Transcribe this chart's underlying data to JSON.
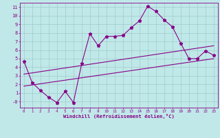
{
  "xlabel": "Windchill (Refroidissement éolien,°C)",
  "bg_color": "#c0e8e8",
  "grid_color": "#a0cccc",
  "line_color": "#880088",
  "spine_color": "#880088",
  "xlim": [
    -0.5,
    23.5
  ],
  "ylim": [
    -0.7,
    11.5
  ],
  "xticks": [
    0,
    1,
    2,
    3,
    4,
    5,
    6,
    7,
    8,
    9,
    10,
    11,
    12,
    13,
    14,
    15,
    16,
    17,
    18,
    19,
    20,
    21,
    22,
    23
  ],
  "yticks": [
    0,
    1,
    2,
    3,
    4,
    5,
    6,
    7,
    8,
    9,
    10,
    11
  ],
  "ytick_labels": [
    "-0",
    "1",
    "2",
    "3",
    "4",
    "5",
    "6",
    "7",
    "8",
    "9",
    "10",
    "11"
  ],
  "data_line": {
    "x": [
      0,
      1,
      2,
      3,
      4,
      5,
      6,
      7,
      8,
      9,
      10,
      11,
      12,
      13,
      14,
      15,
      16,
      17,
      18,
      19,
      20,
      21,
      22,
      23
    ],
    "y": [
      4.7,
      2.2,
      1.3,
      0.5,
      -0.1,
      1.2,
      -0.1,
      4.4,
      7.9,
      6.5,
      7.6,
      7.6,
      7.7,
      8.6,
      9.4,
      11.1,
      10.5,
      9.5,
      8.7,
      6.8,
      5.0,
      5.0,
      5.9,
      5.4
    ]
  },
  "lower_line": {
    "x": [
      0,
      23
    ],
    "y": [
      1.8,
      5.0
    ]
  },
  "upper_line": {
    "x": [
      0,
      23
    ],
    "y": [
      3.2,
      6.5
    ]
  }
}
